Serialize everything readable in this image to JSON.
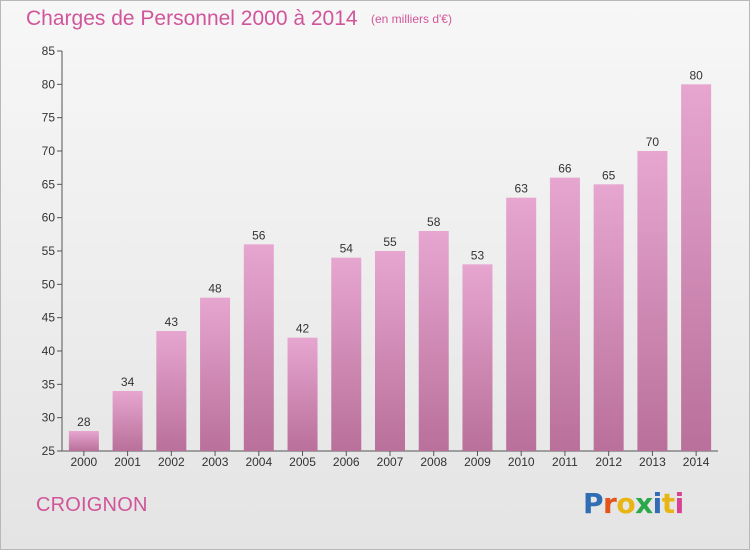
{
  "title": "Charges de Personnel 2000 à 2014",
  "subtitle": "(en milliers d'€)",
  "commune": "CROIGNON",
  "logo": {
    "text": "Proxiti",
    "letter_colors": [
      "#2f6db5",
      "#e2541b",
      "#e8b614",
      "#2aa84a",
      "#2f6db5",
      "#e8b614",
      "#d94191"
    ]
  },
  "colors": {
    "title": "#d0559a",
    "bar_top": "#e6a6d0",
    "bar_bottom": "#b9709a"
  },
  "chart_data": {
    "type": "bar",
    "categories": [
      "2000",
      "2001",
      "2002",
      "2003",
      "2004",
      "2005",
      "2006",
      "2007",
      "2008",
      "2009",
      "2010",
      "2011",
      "2012",
      "2013",
      "2014"
    ],
    "values": [
      28,
      34,
      43,
      48,
      56,
      42,
      54,
      55,
      58,
      53,
      63,
      66,
      65,
      70,
      80
    ],
    "ylim": [
      25,
      85
    ],
    "yticks": [
      25,
      30,
      35,
      40,
      45,
      50,
      55,
      60,
      65,
      70,
      75,
      80,
      85
    ],
    "grid": false,
    "data_labels": true
  }
}
